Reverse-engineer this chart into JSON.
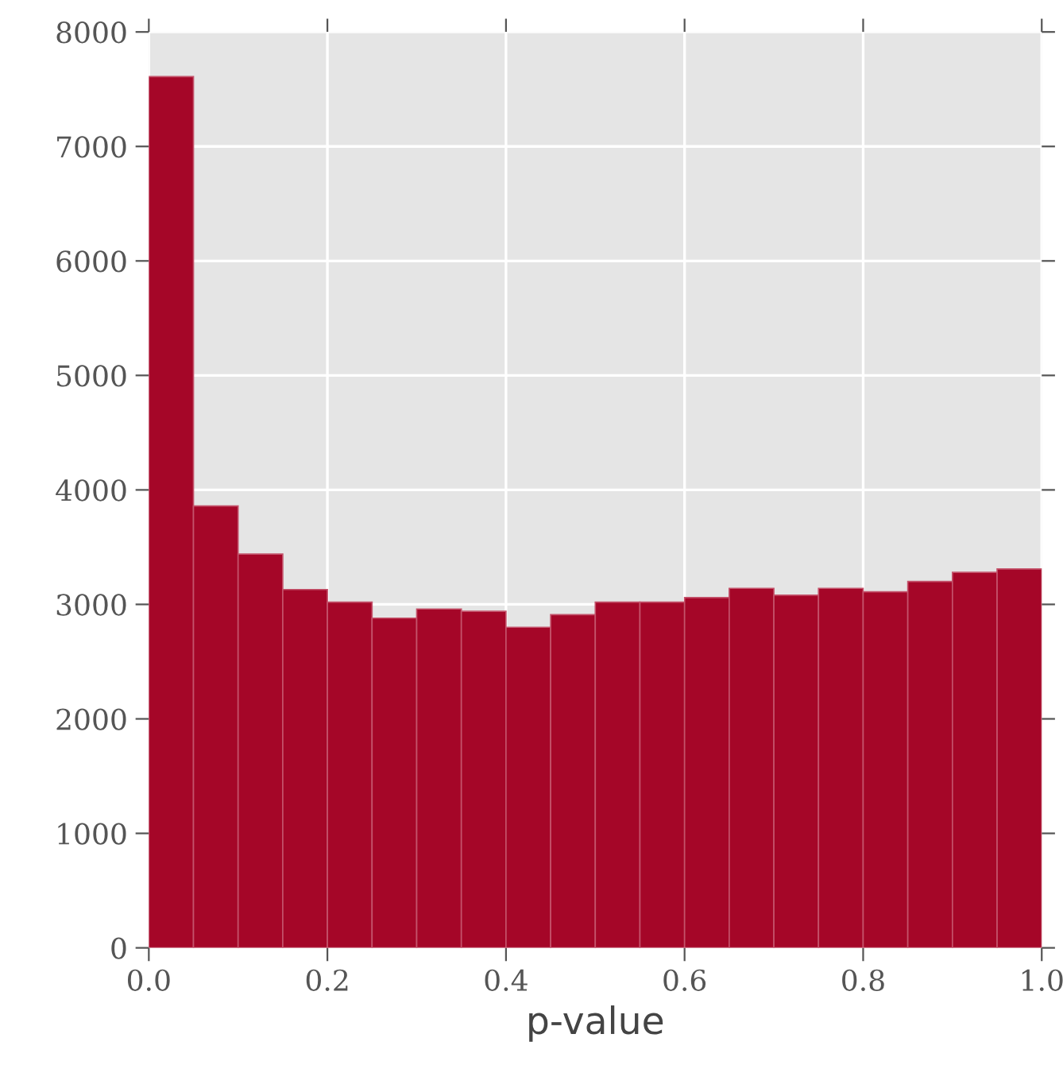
{
  "chart_data": {
    "type": "histogram",
    "xlabel": "p-value",
    "color": "#a50628",
    "bins": [
      0.0,
      0.05,
      0.1,
      0.15,
      0.2,
      0.25,
      0.3,
      0.35,
      0.4,
      0.45,
      0.5,
      0.55,
      0.6,
      0.65,
      0.7,
      0.75,
      0.8,
      0.85,
      0.9,
      0.95,
      1.0
    ],
    "values": [
      7610,
      3860,
      3440,
      3130,
      3020,
      2880,
      2960,
      2940,
      2800,
      2910,
      3020,
      3020,
      3060,
      3140,
      3080,
      3140,
      3110,
      3200,
      3280,
      3310
    ],
    "xlim": [
      0.0,
      1.0
    ],
    "ylim": [
      0,
      8000
    ],
    "xticks": [
      {
        "value": 0.0,
        "label": "0.0"
      },
      0.2,
      0.4,
      0.6,
      0.8,
      {
        "value": 1.0,
        "label": "1.0"
      }
    ],
    "yticks": [
      0,
      1000,
      2000,
      3000,
      4000,
      5000,
      6000,
      7000,
      8000
    ],
    "grid": true
  }
}
